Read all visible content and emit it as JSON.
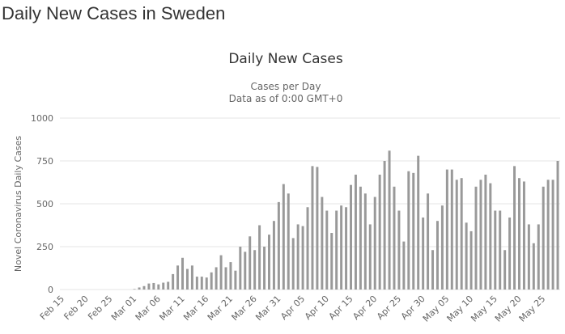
{
  "page_title": "Daily New Cases in Sweden",
  "chart_data": {
    "type": "bar",
    "title": "Daily New Cases",
    "subtitle": "Cases per Day",
    "note": "Data as of 0:00 GMT+0",
    "y_label": "Novel Coronavirus Daily Cases",
    "categories": [
      "Feb 15",
      null,
      null,
      null,
      null,
      "Feb 20",
      null,
      null,
      null,
      null,
      "Feb 25",
      null,
      null,
      null,
      null,
      "Mar 01",
      null,
      null,
      null,
      null,
      "Mar 06",
      null,
      null,
      null,
      null,
      "Mar 11",
      null,
      null,
      null,
      null,
      "Mar 16",
      null,
      null,
      null,
      null,
      "Mar 21",
      null,
      null,
      null,
      null,
      "Mar 26",
      null,
      null,
      null,
      null,
      "Mar 31",
      null,
      null,
      null,
      null,
      "Apr 05",
      null,
      null,
      null,
      null,
      "Apr 10",
      null,
      null,
      null,
      null,
      "Apr 15",
      null,
      null,
      null,
      null,
      "Apr 20",
      null,
      null,
      null,
      null,
      "Apr 25",
      null,
      null,
      null,
      null,
      "Apr 30",
      null,
      null,
      null,
      null,
      "May 05",
      null,
      null,
      null,
      null,
      "May 10",
      null,
      null,
      null,
      null,
      "May 15",
      null,
      null,
      null,
      null,
      "May 20",
      null,
      null,
      null,
      null,
      "May 25",
      null,
      null,
      null
    ],
    "values": [
      0,
      0,
      0,
      0,
      0,
      0,
      0,
      0,
      0,
      0,
      0,
      0,
      0,
      0,
      0,
      3,
      12,
      20,
      35,
      38,
      30,
      40,
      45,
      90,
      140,
      185,
      120,
      140,
      75,
      75,
      70,
      100,
      130,
      200,
      130,
      160,
      110,
      250,
      220,
      310,
      230,
      375,
      250,
      320,
      400,
      510,
      615,
      560,
      300,
      380,
      370,
      480,
      720,
      715,
      540,
      460,
      330,
      460,
      490,
      480,
      610,
      670,
      600,
      560,
      380,
      540,
      670,
      750,
      810,
      600,
      460,
      280,
      690,
      680,
      780,
      420,
      560,
      230,
      400,
      490,
      700,
      700,
      640,
      650,
      390,
      340,
      600,
      640,
      670,
      620,
      460,
      460,
      230,
      420,
      720,
      650,
      630,
      380,
      270,
      380,
      600,
      640,
      640,
      750
    ],
    "color": "#999999",
    "ylim": [
      0,
      1000
    ],
    "yticks": [
      0,
      250,
      500,
      750,
      1000
    ],
    "grid": true
  }
}
